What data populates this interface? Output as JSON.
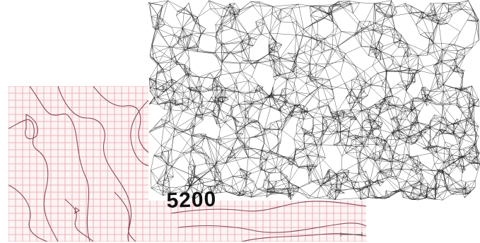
{
  "contour_map": {
    "label": "5200",
    "grid_color": "#e8a0a8",
    "contour_color": "#8a4a58",
    "background": "#fdf4f4"
  },
  "mesh_overlay": {
    "line_color": "#1a1a1a",
    "background": "#ffffff"
  }
}
